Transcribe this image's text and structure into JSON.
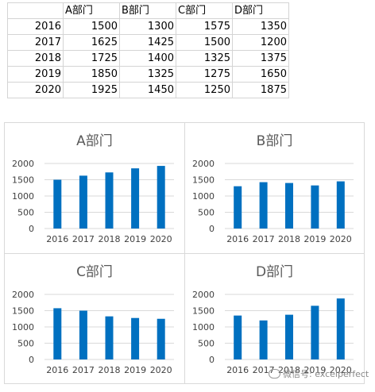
{
  "table": {
    "headers": [
      "",
      "A部门",
      "B部门",
      "C部门",
      "D部门"
    ],
    "rows": [
      [
        "2016",
        "1500",
        "1300",
        "1575",
        "1350"
      ],
      [
        "2017",
        "1625",
        "1425",
        "1500",
        "1200"
      ],
      [
        "2018",
        "1725",
        "1400",
        "1325",
        "1375"
      ],
      [
        "2019",
        "1850",
        "1325",
        "1275",
        "1650"
      ],
      [
        "2020",
        "1925",
        "1450",
        "1250",
        "1875"
      ]
    ]
  },
  "colors": {
    "bar": "#0070C0",
    "grid": "#d9d9d9",
    "axis_text": "#404040",
    "title": "#595959"
  },
  "watermark": {
    "text": "微信号: excelperfect",
    "icon": "wechat-icon"
  },
  "chart_data": [
    {
      "type": "bar",
      "title": "A部门",
      "categories": [
        "2016",
        "2017",
        "2018",
        "2019",
        "2020"
      ],
      "values": [
        1500,
        1625,
        1725,
        1850,
        1925
      ],
      "ylim": [
        0,
        2000
      ],
      "yticks": [
        0,
        500,
        1000,
        1500,
        2000
      ],
      "grid": true
    },
    {
      "type": "bar",
      "title": "B部门",
      "categories": [
        "2016",
        "2017",
        "2018",
        "2019",
        "2020"
      ],
      "values": [
        1300,
        1425,
        1400,
        1325,
        1450
      ],
      "ylim": [
        0,
        2000
      ],
      "yticks": [
        0,
        500,
        1000,
        1500,
        2000
      ],
      "grid": true
    },
    {
      "type": "bar",
      "title": "C部门",
      "categories": [
        "2016",
        "2017",
        "2018",
        "2019",
        "2020"
      ],
      "values": [
        1575,
        1500,
        1325,
        1275,
        1250
      ],
      "ylim": [
        0,
        2000
      ],
      "yticks": [
        0,
        500,
        1000,
        1500,
        2000
      ],
      "grid": true
    },
    {
      "type": "bar",
      "title": "D部门",
      "categories": [
        "2016",
        "2017",
        "2018",
        "2019",
        "2020"
      ],
      "values": [
        1350,
        1200,
        1375,
        1650,
        1875
      ],
      "ylim": [
        0,
        2000
      ],
      "yticks": [
        0,
        500,
        1000,
        1500,
        2000
      ],
      "grid": true
    }
  ]
}
